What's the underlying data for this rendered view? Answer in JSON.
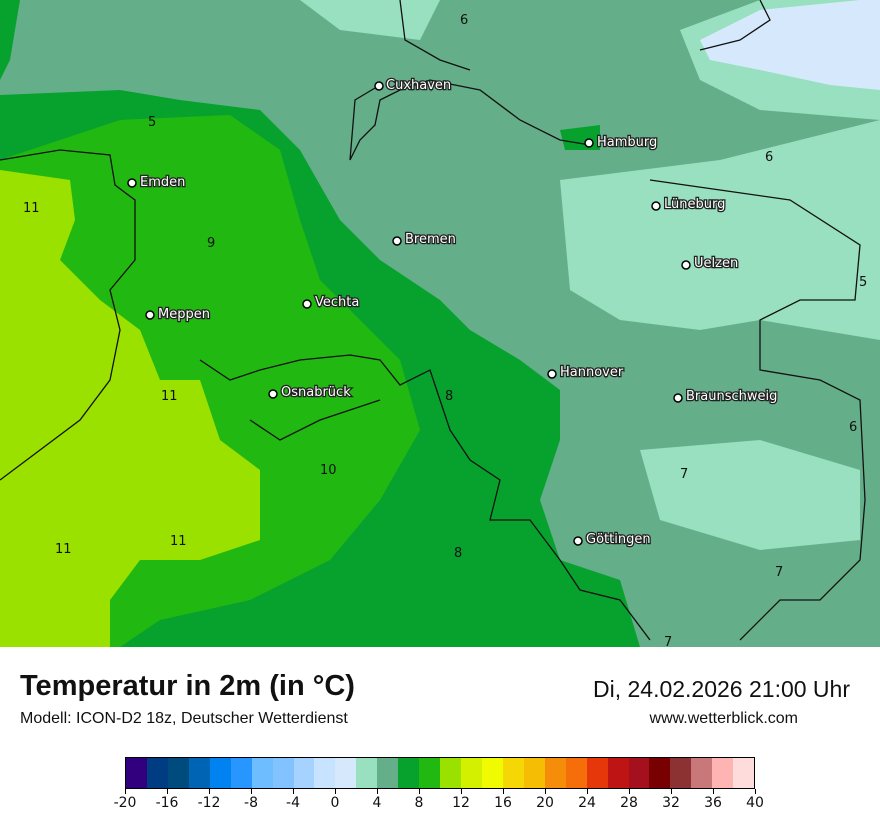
{
  "header": {
    "title": "Temperatur in 2m (in °C)",
    "model": "Modell: ICON-D2 18z, Deutscher Wetterdienst",
    "datetime": "Di, 24.02.2026 21:00 Uhr",
    "website": "www.wetterblick.com"
  },
  "colors": {
    "t0_2": "#d6e9fc",
    "t2_4": "#98e0c0",
    "t4_6": "#64af8a",
    "t6_8": "#07a22e",
    "t8_10": "#22b812",
    "t10_12": "#9be100"
  },
  "cities": [
    {
      "name": "Cuxhaven"
    },
    {
      "name": "Hamburg"
    },
    {
      "name": "Emden"
    },
    {
      "name": "Lüneburg"
    },
    {
      "name": "Bremen"
    },
    {
      "name": "Uelzen"
    },
    {
      "name": "Vechta"
    },
    {
      "name": "Meppen"
    },
    {
      "name": "Hannover"
    },
    {
      "name": "Osnabrück"
    },
    {
      "name": "Braunschweig"
    },
    {
      "name": "Göttingen"
    }
  ],
  "contour_labels": [
    "6",
    "5",
    "6",
    "11",
    "9",
    "5",
    "11",
    "8",
    "6",
    "10",
    "7",
    "11",
    "11",
    "8",
    "7",
    "7"
  ],
  "legend": {
    "colors": [
      "#32007e",
      "#003c82",
      "#004b7e",
      "#0064b4",
      "#0082f0",
      "#2896ff",
      "#6ebeff",
      "#82c3ff",
      "#a5d2ff",
      "#c8e3ff",
      "#d6e9fc",
      "#98e0c0",
      "#64af8a",
      "#07a22e",
      "#22b812",
      "#9be100",
      "#d2f000",
      "#f0fa00",
      "#f5d705",
      "#f5be05",
      "#f58c0a",
      "#f56e0a",
      "#e6370a",
      "#be1414",
      "#a5101e",
      "#780000",
      "#8c3232",
      "#c87878",
      "#ffb4b4",
      "#ffdcdc"
    ],
    "ticks": [
      "-20",
      "-16",
      "-12",
      "-8",
      "-4",
      "0",
      "4",
      "8",
      "12",
      "16",
      "20",
      "24",
      "28",
      "32",
      "36",
      "40"
    ]
  }
}
